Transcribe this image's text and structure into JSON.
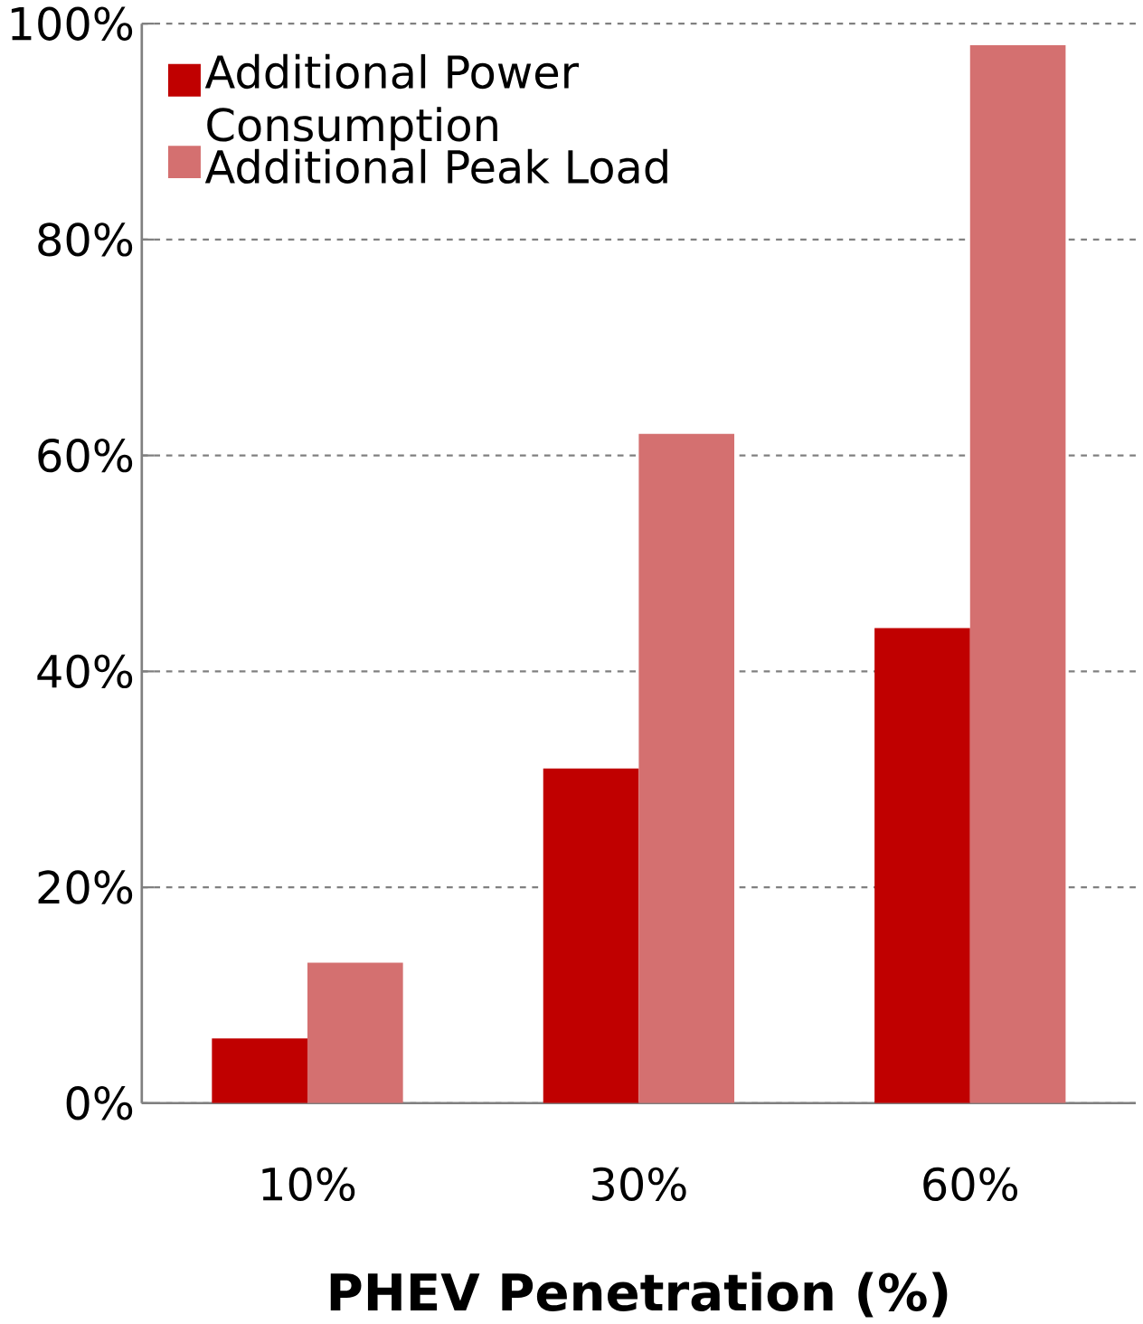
{
  "chart_data": {
    "type": "bar",
    "xlabel": "PHEV Penetration (%)",
    "categories": [
      "10%",
      "30%",
      "60%"
    ],
    "series": [
      {
        "name": "Additional Power Consumption",
        "color": "#c00000",
        "values": [
          6,
          31,
          44
        ]
      },
      {
        "name": "Additional Peak Load",
        "color": "#d47070",
        "values": [
          13,
          62,
          98
        ]
      }
    ],
    "ylim": [
      0,
      100
    ],
    "yticks": [
      {
        "value": 0,
        "label": "0%"
      },
      {
        "value": 20,
        "label": "20%"
      },
      {
        "value": 40,
        "label": "40%"
      },
      {
        "value": 60,
        "label": "60%"
      },
      {
        "value": 80,
        "label": "80%"
      },
      {
        "value": 100,
        "label": "100%"
      }
    ],
    "grid": "y",
    "legend": "top left"
  }
}
